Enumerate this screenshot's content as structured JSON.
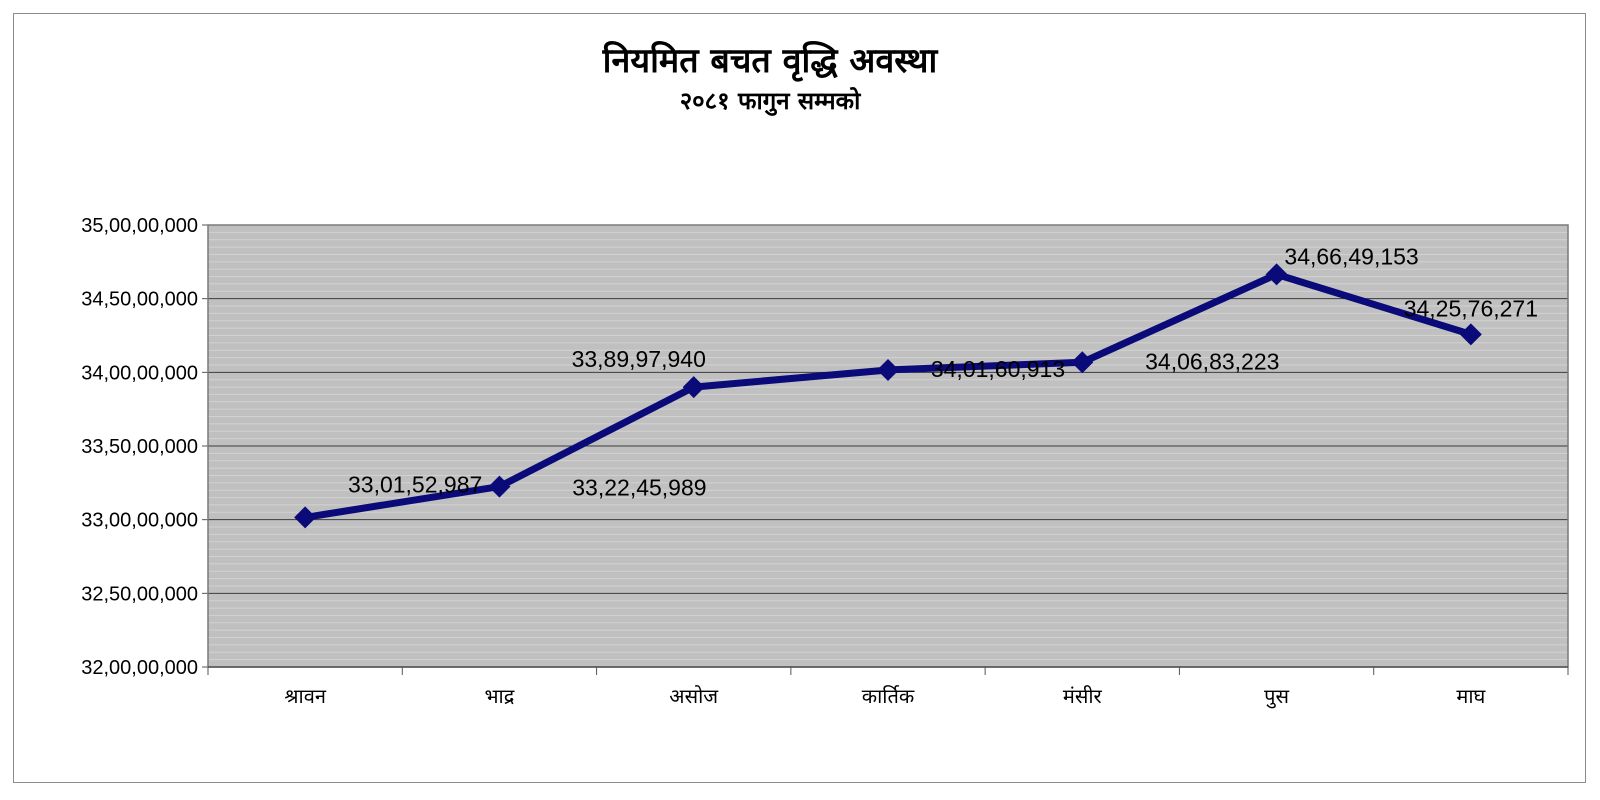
{
  "chart_data": {
    "type": "line",
    "title": "नियमित बचत वृद्धि अवस्था",
    "subtitle": "२०८१ फागुन सम्मको",
    "xlabel": "",
    "ylabel": "",
    "categories": [
      "श्रावन",
      "भाद्र",
      "असोज",
      "कार्तिक",
      "मंसीर",
      "पुस",
      "माघ"
    ],
    "series": [
      {
        "values": [
          330152987,
          332245989,
          338997940,
          340160913,
          340683223,
          346649153,
          342576271
        ],
        "labels": [
          "33,01,52,987",
          "33,22,45,989",
          "33,89,97,940",
          "34,01,60,913",
          "34,06,83,223",
          "34,66,49,153",
          "34,25,76,271"
        ]
      }
    ],
    "ylim": [
      320000000,
      350000000
    ],
    "y_ticks": [
      {
        "value": 320000000,
        "label": "32,00,00,000"
      },
      {
        "value": 325000000,
        "label": "32,50,00,000"
      },
      {
        "value": 330000000,
        "label": "33,00,00,000"
      },
      {
        "value": 335000000,
        "label": "33,50,00,000"
      },
      {
        "value": 340000000,
        "label": "34,00,00,000"
      },
      {
        "value": 345000000,
        "label": "34,50,00,000"
      },
      {
        "value": 350000000,
        "label": "35,00,00,000"
      }
    ],
    "grid": true,
    "legend": "none",
    "colors": {
      "line": "#0a0a78",
      "plot_background": "#c0c0c0",
      "major_grid": "#3c3c3c",
      "minor_grid": "#d2d2d2"
    }
  }
}
